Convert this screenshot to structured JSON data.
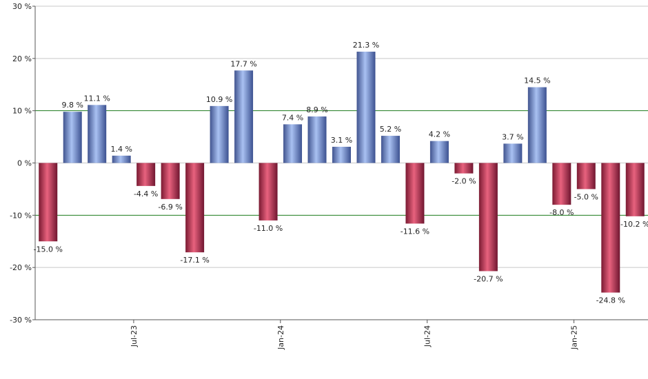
{
  "chart_data": {
    "type": "bar",
    "title": "",
    "xlabel": "",
    "ylabel": "",
    "ylim": [
      -30,
      30
    ],
    "yticks": [
      30,
      20,
      10,
      0,
      -10,
      -20,
      -30
    ],
    "ytick_labels": [
      "30 %",
      "20 %",
      "10 %",
      "0 %",
      "-10 %",
      "-20 %",
      "-30 %"
    ],
    "highlight_lines": [
      10,
      -10
    ],
    "x_tick_labels": [
      {
        "label": "Jul-23",
        "index": 3.5
      },
      {
        "label": "Jan-24",
        "index": 9.5
      },
      {
        "label": "Jul-24",
        "index": 15.5
      },
      {
        "label": "Jan-25",
        "index": 21.5
      }
    ],
    "values": [
      -15.0,
      9.8,
      11.1,
      1.4,
      -4.4,
      -6.9,
      -17.1,
      10.9,
      17.7,
      -11.0,
      7.4,
      8.9,
      3.1,
      21.3,
      5.2,
      -11.6,
      4.2,
      -2.0,
      -20.7,
      3.7,
      14.5,
      -8.0,
      -5.0,
      -24.8,
      -10.2
    ],
    "labels": [
      "-15.0 %",
      "9.8 %",
      "11.1 %",
      "1.4 %",
      "-4.4 %",
      "-6.9 %",
      "-17.1 %",
      "10.9 %",
      "17.7 %",
      "-11.0 %",
      "7.4 %",
      "8.9 %",
      "3.1 %",
      "21.3 %",
      "5.2 %",
      "-11.6 %",
      "4.2 %",
      "-2.0 %",
      "-20.7 %",
      "3.7 %",
      "14.5 %",
      "-8.0 %",
      "-5.0 %",
      "-24.8 %",
      "-10.2 %"
    ],
    "colors": {
      "positive": "#7596d6",
      "negative": "#c93b59",
      "grid": "#c8c8c8",
      "highlight": "#1a7a1a",
      "axis": "#555555"
    }
  }
}
